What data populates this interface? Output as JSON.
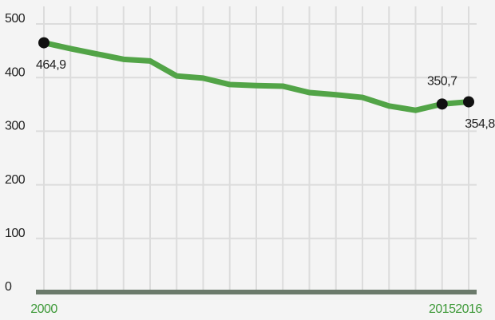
{
  "chart_data": {
    "type": "line",
    "categories": [
      "2000",
      null,
      null,
      null,
      null,
      null,
      null,
      null,
      null,
      null,
      null,
      null,
      null,
      null,
      null,
      "2015",
      "2016"
    ],
    "series": [
      {
        "color": "#52a447",
        "values": [
          464.9,
          454,
          444,
          434,
          431,
          403,
          399,
          387,
          385,
          384,
          372,
          368,
          363,
          347,
          339,
          350.7,
          354.8
        ],
        "value_labels": [
          "464,9",
          null,
          null,
          null,
          null,
          null,
          null,
          null,
          null,
          null,
          null,
          null,
          null,
          null,
          null,
          "350,7",
          "354,8"
        ]
      }
    ],
    "ylim": [
      0,
      500
    ],
    "yticks": [
      0,
      100,
      200,
      300,
      400,
      500
    ],
    "grid": true
  }
}
